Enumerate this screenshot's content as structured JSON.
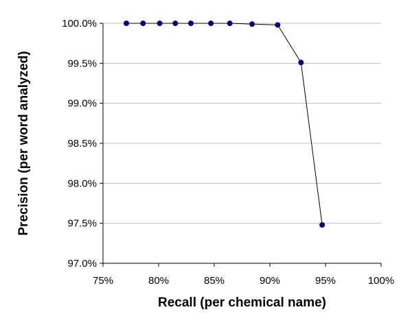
{
  "chart_data": {
    "type": "line",
    "title": "",
    "xlabel": "Recall (per chemical name)",
    "ylabel": "Precision (per word analyzed)",
    "xlim": [
      0.75,
      1.0
    ],
    "ylim": [
      0.97,
      1.0
    ],
    "x_ticks": [
      "75%",
      "80%",
      "85%",
      "90%",
      "95%",
      "100%"
    ],
    "y_ticks": [
      "97.0%",
      "97.5%",
      "98.0%",
      "98.5%",
      "99.0%",
      "99.5%",
      "100.0%"
    ],
    "grid": "horizontal",
    "legend": "none",
    "series": [
      {
        "x": [
          0.771,
          0.786,
          0.801,
          0.815,
          0.829,
          0.847,
          0.864,
          0.884,
          0.907,
          0.928,
          0.947
        ],
        "y": [
          1.0,
          1.0,
          1.0,
          1.0,
          1.0,
          1.0,
          1.0,
          0.9999,
          0.9998,
          0.9951,
          0.9748
        ]
      }
    ],
    "colors": {
      "marker": "#000080",
      "line": "#000000",
      "grid": "#c0c0c0"
    }
  }
}
